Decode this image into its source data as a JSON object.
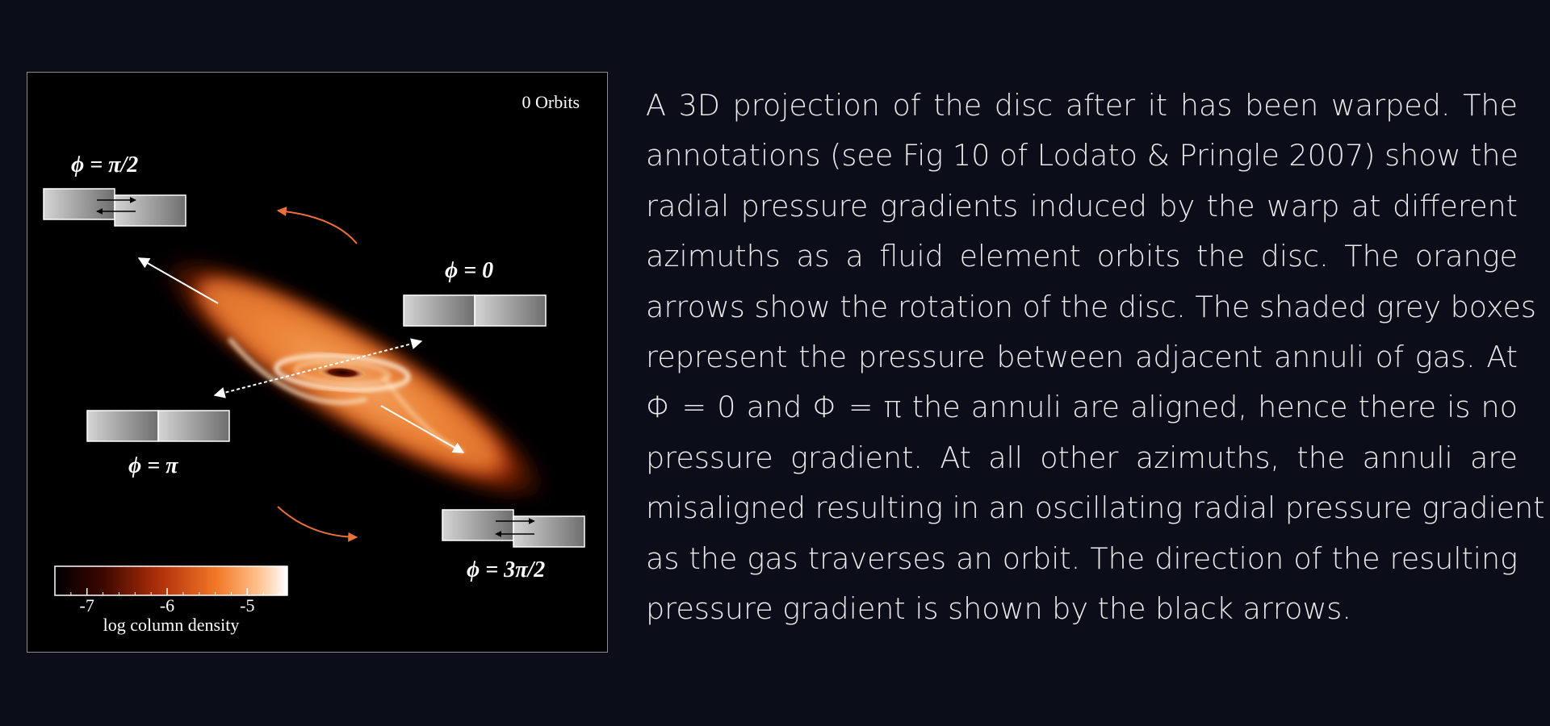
{
  "figure": {
    "orbit_label": "0 Orbits",
    "azimuth_labels": {
      "phi_0": "ϕ = 0",
      "phi_pi_half": "ϕ = π/2",
      "phi_pi": "ϕ = π",
      "phi_3pi_half": "ϕ = 3π/2"
    },
    "colorbar": {
      "label": "log column density",
      "ticks": [
        "-7",
        "-6",
        "-5"
      ],
      "tick_values": [
        -7,
        -6,
        -5
      ],
      "range": [
        -7.4,
        -4.5
      ]
    },
    "colors": {
      "rotation_arrow": "#e8703a",
      "disc_outer": "#a82c06",
      "disc_mid": "#f07a2a",
      "disc_inner": "#ffe0c0",
      "box_fill_dark": "#7a7a7a",
      "box_fill_light": "#d6d6d6"
    }
  },
  "caption": {
    "lines": [
      "A 3D projection of the disc after it has been warped. The",
      "annotations (see Fig 10 of Lodato & Pringle 2007) show the",
      "radial pressure gradients induced by the warp at different",
      "azimuths as a fluid element orbits the disc.  The orange",
      "arrows show the rotation of the disc. The shaded grey boxes",
      "represent the pressure between adjacent annuli of gas. At",
      "Φ = 0 and Φ = π the annuli are aligned, hence there is no",
      "pressure gradient.  At all other azimuths, the annuli are",
      "misaligned resulting in an oscillating radial pressure gradient",
      "as the gas traverses an orbit.  The direction of the resulting",
      "pressure gradient is shown by the black arrows."
    ]
  }
}
